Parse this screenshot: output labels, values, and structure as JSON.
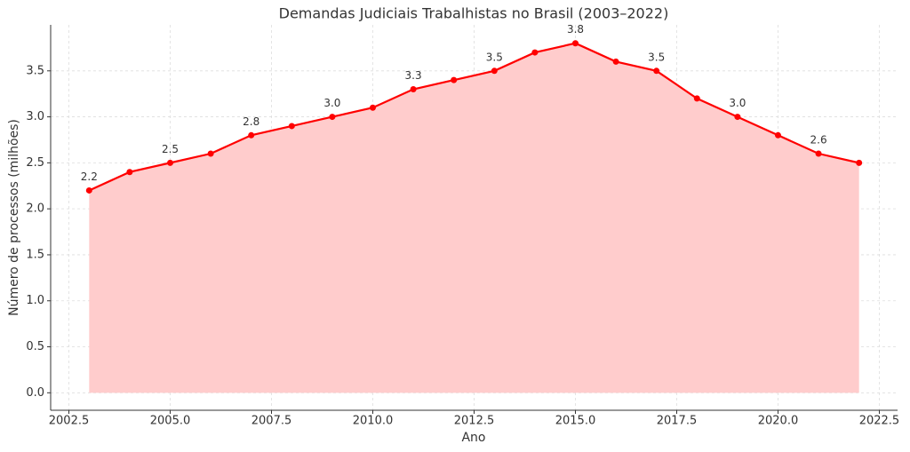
{
  "chart_data": {
    "type": "area-line",
    "title": "Demandas Judiciais Trabalhistas no Brasil (2003–2022)",
    "x_label": "Ano",
    "y_label": "Número de processos (milhões)",
    "x": [
      2003,
      2004,
      2005,
      2006,
      2007,
      2008,
      2009,
      2010,
      2011,
      2012,
      2013,
      2014,
      2015,
      2016,
      2017,
      2018,
      2019,
      2020,
      2021,
      2022
    ],
    "values": [
      2.2,
      2.4,
      2.5,
      2.6,
      2.8,
      2.9,
      3.0,
      3.1,
      3.3,
      3.4,
      3.5,
      3.7,
      3.8,
      3.6,
      3.5,
      3.2,
      3.0,
      2.8,
      2.6,
      2.5
    ],
    "value_labels": [
      "2.2",
      null,
      "2.5",
      null,
      "2.8",
      null,
      "3.0",
      null,
      "3.3",
      null,
      "3.5",
      null,
      "3.8",
      null,
      "3.5",
      null,
      "3.0",
      null,
      "2.6",
      null
    ],
    "color": "#ff0000",
    "fill_color": "#ffcccc",
    "xlim": [
      2002.05,
      2022.95
    ],
    "xticks": [
      2002.5,
      {
        "value": 2005,
        "label": "2005.0"
      },
      2007.5,
      {
        "value": 2010,
        "label": "2010.0"
      },
      2012.5,
      {
        "value": 2015,
        "label": "2015.0"
      },
      2017.5,
      {
        "value": 2020,
        "label": "2020.0"
      },
      2022.5
    ],
    "ylim": [
      -0.19,
      4.0
    ],
    "yticks": [
      {
        "value": 0,
        "label": "0.0"
      },
      0.5,
      {
        "value": 1,
        "label": "1.0"
      },
      1.5,
      {
        "value": 2,
        "label": "2.0"
      },
      2.5,
      {
        "value": 3,
        "label": "3.0"
      },
      3.5
    ],
    "grid": true
  }
}
